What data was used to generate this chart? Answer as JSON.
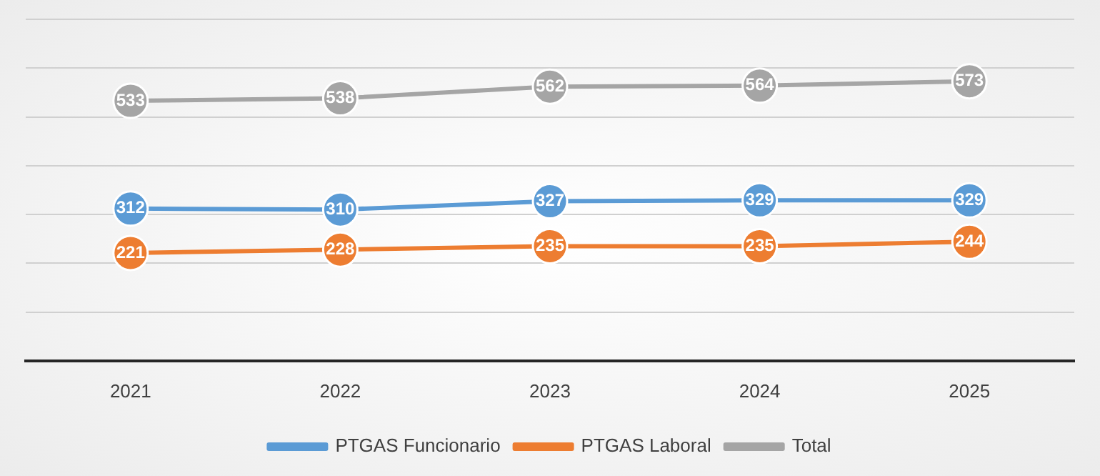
{
  "chart_data": {
    "type": "line",
    "categories": [
      "2021",
      "2022",
      "2023",
      "2024",
      "2025"
    ],
    "series": [
      {
        "name": "PTGAS Funcionario",
        "color": "#5b9bd5",
        "values": [
          312,
          310,
          327,
          329,
          329
        ]
      },
      {
        "name": "PTGAS Laboral",
        "color": "#ed7d31",
        "values": [
          221,
          228,
          235,
          235,
          244
        ]
      },
      {
        "name": "Total",
        "color": "#a5a5a5",
        "values": [
          533,
          538,
          562,
          564,
          573
        ]
      }
    ],
    "ylim": [
      0,
      700
    ],
    "yticks": [
      {
        "value": 0,
        "label": null
      },
      {
        "value": 100,
        "label": null
      },
      {
        "value": 200,
        "label": null
      },
      {
        "value": 300,
        "label": null
      },
      {
        "value": 400,
        "label": null
      },
      {
        "value": 500,
        "label": null
      },
      {
        "value": 600,
        "label": null
      },
      {
        "value": 700,
        "label": null
      }
    ],
    "tick_labels": "x",
    "grid": "y",
    "legend": "bottom",
    "marker": "circle",
    "line_style": "solid",
    "data_labels": true
  }
}
